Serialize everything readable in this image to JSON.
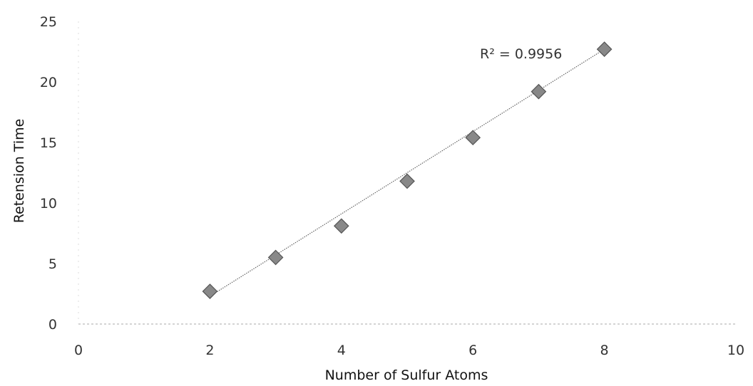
{
  "chart_data": {
    "type": "scatter",
    "title": "",
    "xlabel": "Number of Sulfur Atoms",
    "ylabel": "Retension Time",
    "xlim": [
      0,
      10
    ],
    "ylim": [
      0,
      25
    ],
    "xticks": [
      0,
      2,
      4,
      6,
      8,
      10
    ],
    "yticks": [
      0,
      5,
      10,
      15,
      20,
      25
    ],
    "grid": false,
    "legend": "none",
    "series": [
      {
        "marker": "diamond",
        "color": "#888888",
        "points": [
          {
            "x": 2,
            "y": 2.7
          },
          {
            "x": 3,
            "y": 5.5
          },
          {
            "x": 4,
            "y": 8.1
          },
          {
            "x": 5,
            "y": 11.8
          },
          {
            "x": 6,
            "y": 15.4
          },
          {
            "x": 7,
            "y": 19.2
          },
          {
            "x": 8,
            "y": 22.7
          }
        ],
        "trendline": {
          "type": "linear",
          "x_from": 2,
          "x_to": 8,
          "y_from": 2.3,
          "y_to": 22.7
        }
      }
    ],
    "annotations": [
      {
        "text": "R² = 0.9956"
      }
    ]
  }
}
